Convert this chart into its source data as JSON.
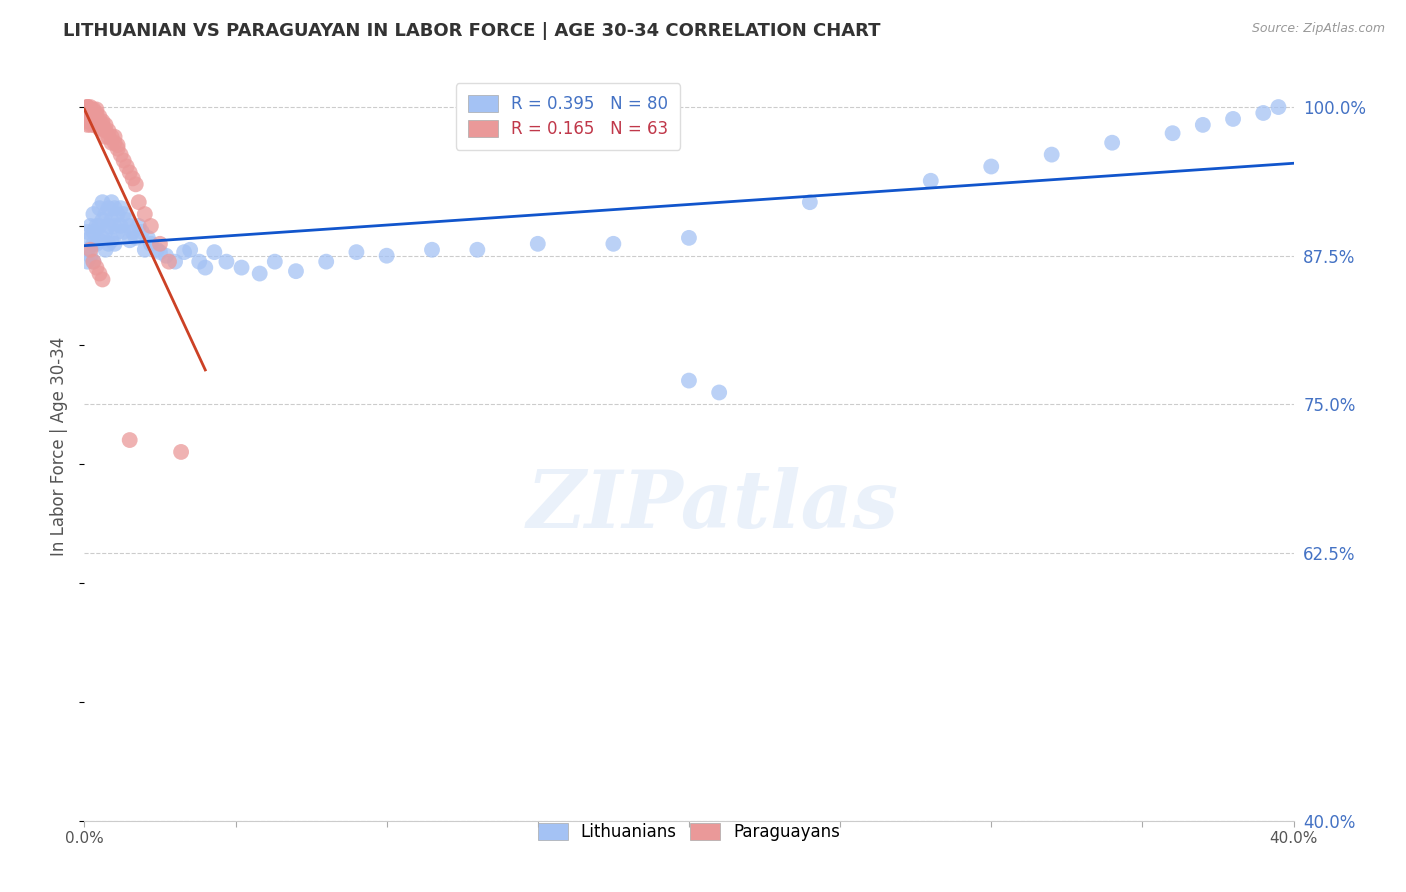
{
  "title": "LITHUANIAN VS PARAGUAYAN IN LABOR FORCE | AGE 30-34 CORRELATION CHART",
  "source": "Source: ZipAtlas.com",
  "ylabel": "In Labor Force | Age 30-34",
  "xlim": [
    0.0,
    0.4
  ],
  "ylim": [
    0.4,
    1.03
  ],
  "xticks": [
    0.0,
    0.05,
    0.1,
    0.15,
    0.2,
    0.25,
    0.3,
    0.35,
    0.4
  ],
  "xticklabels": [
    "0.0%",
    "",
    "",
    "",
    "",
    "",
    "",
    "",
    "40.0%"
  ],
  "yticks": [
    0.4,
    0.625,
    0.75,
    0.875,
    1.0
  ],
  "yticklabels_right": [
    "40.0%",
    "62.5%",
    "75.0%",
    "87.5%",
    "100.0%"
  ],
  "legend_blue_r": "R = 0.395",
  "legend_blue_n": "N = 80",
  "legend_pink_r": "R = 0.165",
  "legend_pink_n": "N = 63",
  "blue_color": "#a4c2f4",
  "pink_color": "#ea9999",
  "blue_line_color": "#1155cc",
  "pink_line_color": "#cc4125",
  "background_color": "#ffffff",
  "watermark_text": "ZIPatlas",
  "blue_scatter_x": [
    0.001,
    0.001,
    0.001,
    0.002,
    0.002,
    0.002,
    0.003,
    0.003,
    0.003,
    0.003,
    0.004,
    0.004,
    0.005,
    0.005,
    0.005,
    0.006,
    0.006,
    0.006,
    0.007,
    0.007,
    0.007,
    0.008,
    0.008,
    0.008,
    0.009,
    0.009,
    0.009,
    0.01,
    0.01,
    0.01,
    0.011,
    0.011,
    0.012,
    0.012,
    0.013,
    0.013,
    0.014,
    0.015,
    0.015,
    0.016,
    0.017,
    0.018,
    0.019,
    0.02,
    0.021,
    0.022,
    0.024,
    0.025,
    0.027,
    0.03,
    0.033,
    0.035,
    0.038,
    0.04,
    0.043,
    0.047,
    0.052,
    0.058,
    0.063,
    0.07,
    0.08,
    0.09,
    0.1,
    0.115,
    0.13,
    0.15,
    0.175,
    0.2,
    0.24,
    0.28,
    0.3,
    0.32,
    0.34,
    0.36,
    0.37,
    0.38,
    0.39,
    0.395,
    0.2,
    0.21
  ],
  "blue_scatter_y": [
    0.895,
    0.88,
    0.87,
    0.9,
    0.89,
    0.875,
    0.91,
    0.895,
    0.885,
    0.87,
    0.9,
    0.885,
    0.915,
    0.9,
    0.888,
    0.92,
    0.905,
    0.89,
    0.91,
    0.895,
    0.88,
    0.915,
    0.9,
    0.885,
    0.92,
    0.905,
    0.888,
    0.915,
    0.9,
    0.885,
    0.91,
    0.895,
    0.915,
    0.9,
    0.91,
    0.895,
    0.905,
    0.9,
    0.888,
    0.895,
    0.89,
    0.9,
    0.895,
    0.88,
    0.89,
    0.885,
    0.88,
    0.878,
    0.875,
    0.87,
    0.878,
    0.88,
    0.87,
    0.865,
    0.878,
    0.87,
    0.865,
    0.86,
    0.87,
    0.862,
    0.87,
    0.878,
    0.875,
    0.88,
    0.88,
    0.885,
    0.885,
    0.89,
    0.92,
    0.938,
    0.95,
    0.96,
    0.97,
    0.978,
    0.985,
    0.99,
    0.995,
    1.0,
    0.77,
    0.76
  ],
  "pink_scatter_x": [
    0.001,
    0.001,
    0.001,
    0.001,
    0.001,
    0.001,
    0.001,
    0.001,
    0.001,
    0.001,
    0.002,
    0.002,
    0.002,
    0.002,
    0.002,
    0.002,
    0.002,
    0.003,
    0.003,
    0.003,
    0.003,
    0.003,
    0.004,
    0.004,
    0.004,
    0.004,
    0.004,
    0.005,
    0.005,
    0.005,
    0.005,
    0.006,
    0.006,
    0.006,
    0.007,
    0.007,
    0.007,
    0.008,
    0.008,
    0.009,
    0.009,
    0.01,
    0.01,
    0.011,
    0.011,
    0.012,
    0.013,
    0.014,
    0.015,
    0.016,
    0.017,
    0.018,
    0.02,
    0.022,
    0.025,
    0.028,
    0.032,
    0.002,
    0.003,
    0.004,
    0.005,
    0.006,
    0.015
  ],
  "pink_scatter_y": [
    1.0,
    1.0,
    1.0,
    0.998,
    0.996,
    0.994,
    0.992,
    0.99,
    0.988,
    0.985,
    1.0,
    0.998,
    0.995,
    0.992,
    0.99,
    0.988,
    0.985,
    0.998,
    0.995,
    0.992,
    0.99,
    0.985,
    0.998,
    0.995,
    0.992,
    0.989,
    0.985,
    0.992,
    0.988,
    0.985,
    0.982,
    0.988,
    0.985,
    0.982,
    0.985,
    0.98,
    0.975,
    0.98,
    0.975,
    0.975,
    0.97,
    0.975,
    0.97,
    0.968,
    0.965,
    0.96,
    0.955,
    0.95,
    0.945,
    0.94,
    0.935,
    0.92,
    0.91,
    0.9,
    0.885,
    0.87,
    0.71,
    0.88,
    0.87,
    0.865,
    0.86,
    0.855,
    0.72
  ]
}
